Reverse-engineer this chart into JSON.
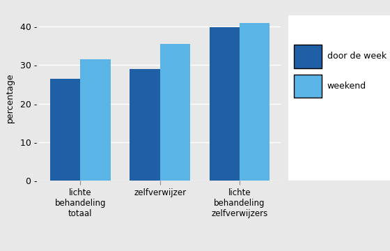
{
  "categories": [
    "lichte\nbehandeling\ntotaal",
    "zelfverwijzer",
    "lichte\nbehandeling\nzelfverwijzers"
  ],
  "week_values": [
    26.5,
    29.0,
    39.8
  ],
  "weekend_values": [
    31.5,
    35.5,
    41.0
  ],
  "color_week": "#1f5fa6",
  "color_weekend": "#5ab4e5",
  "ylabel": "percentage",
  "legend_week": "door de week",
  "legend_weekend": "weekend",
  "ylim": [
    0,
    43
  ],
  "yticks": [
    0,
    10,
    20,
    30,
    40
  ],
  "plot_bg_color": "#e8e8e8",
  "fig_bg_color": "#e8e8e8",
  "legend_bg_color": "#ffffff",
  "grid_color": "#ffffff",
  "bar_width": 0.38
}
